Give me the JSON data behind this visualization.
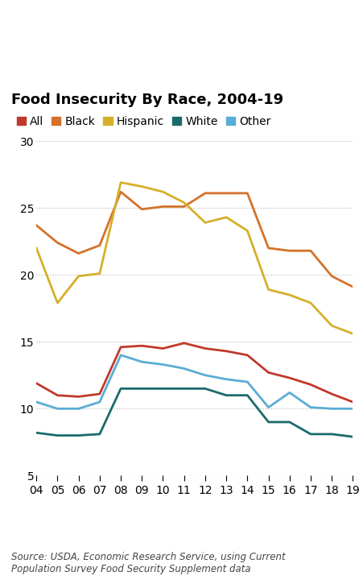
{
  "title": "Food Insecurity By Race, 2004-19",
  "source": "Source: USDA, Economic Research Service, using Current\nPopulation Survey Food Security Supplement data",
  "years": [
    2004,
    2005,
    2006,
    2007,
    2008,
    2009,
    2010,
    2011,
    2012,
    2013,
    2014,
    2015,
    2016,
    2017,
    2018,
    2019
  ],
  "series": {
    "All": {
      "color": "#c0392b",
      "values": [
        11.9,
        11.0,
        10.9,
        11.1,
        14.6,
        14.7,
        14.5,
        14.9,
        14.5,
        14.3,
        14.0,
        12.7,
        12.3,
        11.8,
        11.1,
        10.5
      ]
    },
    "Black": {
      "color": "#d4722a",
      "values": [
        23.7,
        22.4,
        21.6,
        22.2,
        26.2,
        24.9,
        25.1,
        25.1,
        26.1,
        26.1,
        26.1,
        22.0,
        21.8,
        21.8,
        19.9,
        19.1
      ]
    },
    "Hispanic": {
      "color": "#d4b02a",
      "values": [
        22.0,
        17.9,
        19.9,
        20.1,
        26.9,
        26.6,
        26.2,
        25.4,
        23.9,
        24.3,
        23.3,
        18.9,
        18.5,
        17.9,
        16.2,
        15.6
      ]
    },
    "White": {
      "color": "#1a6b6b",
      "values": [
        8.2,
        8.0,
        8.0,
        8.1,
        11.5,
        11.5,
        11.5,
        11.5,
        11.5,
        11.0,
        11.0,
        9.0,
        9.0,
        8.1,
        8.1,
        7.9
      ]
    },
    "Other": {
      "color": "#5bacd4",
      "values": [
        10.5,
        10.0,
        10.0,
        10.5,
        14.0,
        13.5,
        13.3,
        13.0,
        12.5,
        12.2,
        12.0,
        10.1,
        11.2,
        10.1,
        10.0,
        10.0
      ]
    }
  },
  "legend_order": [
    "All",
    "Black",
    "Hispanic",
    "White",
    "Other"
  ],
  "ylim": [
    5,
    31
  ],
  "yticks": [
    5,
    10,
    15,
    20,
    25,
    30
  ],
  "background_color": "#ffffff",
  "grid_color": "#bbbbbb",
  "title_fontsize": 13,
  "legend_fontsize": 10,
  "tick_fontsize": 10,
  "source_fontsize": 8.5
}
